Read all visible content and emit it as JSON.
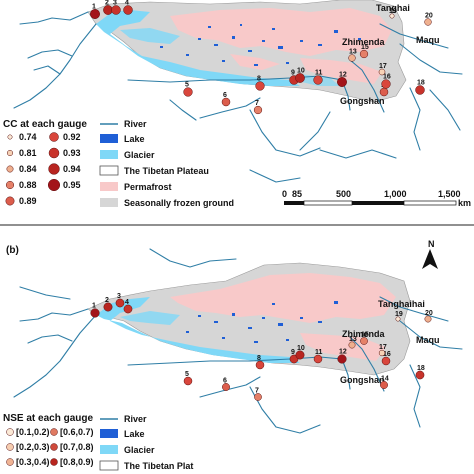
{
  "panel_a": {
    "legend_cc": {
      "title": "CC at each gauge",
      "items": [
        {
          "label": "0.74",
          "color": "#fbe9d6"
        },
        {
          "label": "0.92",
          "color": "#d9463c"
        },
        {
          "label": "0.81",
          "color": "#f7d2b6"
        },
        {
          "label": "0.93",
          "color": "#c8332b"
        },
        {
          "label": "0.84",
          "color": "#efb08f"
        },
        {
          "label": "0.94",
          "color": "#b82520"
        },
        {
          "label": "0.88",
          "color": "#e58068"
        },
        {
          "label": "0.95",
          "color": "#a3141a"
        },
        {
          "label": "0.89",
          "color": "#dc5d4c"
        }
      ]
    },
    "legend_layers": {
      "river": "River",
      "lake": "Lake",
      "glacier": "Glacier",
      "plateau": "The Tibetan Plateau",
      "permafrost": "Permafrost",
      "seasonal": "Seasonally frozen ground"
    },
    "scale": {
      "labels": [
        "0",
        "85",
        "500",
        "1,000",
        "1,500"
      ],
      "unit": "km"
    },
    "places": {
      "tanghaihai": "Tanghai",
      "zhimenda": "Zhimenda",
      "maqu": "Maqu",
      "gongshan": "Gongshan"
    }
  },
  "panel_b": {
    "label": "(b)",
    "north": "N",
    "legend_nse": {
      "title": "NSE at each gauge",
      "items": [
        {
          "label": "[0.1,0.2)",
          "color": "#fbe9d6"
        },
        {
          "label": "[0.6,0.7)",
          "color": "#e07a62"
        },
        {
          "label": "[0.2,0.3)",
          "color": "#f6cdb0"
        },
        {
          "label": "[0.7,0.8)",
          "color": "#cf4a3c"
        },
        {
          "label": "[0.3,0.4)",
          "color": "#f0b494"
        },
        {
          "label": "[0.8,0.9)",
          "color": "#b8251e"
        }
      ]
    },
    "legend_layers": {
      "river": "River",
      "lake": "Lake",
      "glacier": "Glacier",
      "plateau": "The Tibetan Plat"
    },
    "places": {
      "tanghaihai": "Tanghaihai",
      "zhimenda": "Zhimenda",
      "maqu": "Maqu",
      "gongshan": "Gongshan"
    }
  },
  "gauges": [
    {
      "id": "1",
      "cc": 0.95
    },
    {
      "id": "2",
      "cc": 0.94
    },
    {
      "id": "3",
      "cc": 0.93
    },
    {
      "id": "4",
      "cc": 0.93
    },
    {
      "id": "5",
      "cc": 0.92
    },
    {
      "id": "6",
      "cc": 0.89
    },
    {
      "id": "7",
      "cc": 0.88
    },
    {
      "id": "8",
      "cc": 0.92
    },
    {
      "id": "9",
      "cc": 0.93
    },
    {
      "id": "10",
      "cc": 0.94
    },
    {
      "id": "11",
      "cc": 0.92
    },
    {
      "id": "12",
      "cc": 0.95
    },
    {
      "id": "13",
      "cc": 0.84
    },
    {
      "id": "14",
      "cc": 0.89
    },
    {
      "id": "15",
      "cc": 0.88
    },
    {
      "id": "16",
      "cc": 0.92
    },
    {
      "id": "17",
      "cc": 0.81
    },
    {
      "id": "18",
      "cc": 0.93
    },
    {
      "id": "19",
      "cc": 0.74
    },
    {
      "id": "20",
      "cc": 0.84
    }
  ],
  "colors": {
    "seasonal": "#d6d6d6",
    "permafrost": "#f8c9c9",
    "glacier": "#7fd8f7",
    "lake": "#1f5fd6",
    "river": "#2f7ea6"
  }
}
